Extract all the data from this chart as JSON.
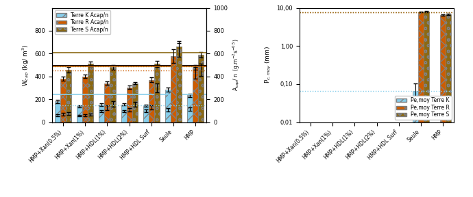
{
  "categories": [
    "HMP+Xan(0.5%)",
    "HMP+Xan(1%)",
    "HMP+HDL(1%)",
    "HMP+HDL(2%)",
    "HMP+HDL Surf",
    "Seule",
    "HMP"
  ],
  "wcap_K": [
    180,
    140,
    155,
    155,
    145,
    285,
    235
  ],
  "wcap_R": [
    380,
    400,
    340,
    305,
    370,
    520,
    480
  ],
  "wcap_S": [
    460,
    510,
    480,
    340,
    510,
    660,
    590
  ],
  "wcap_err_K": [
    15,
    10,
    12,
    10,
    10,
    20,
    15
  ],
  "wcap_err_R": [
    20,
    15,
    15,
    15,
    20,
    25,
    20
  ],
  "wcap_err_S": [
    25,
    20,
    20,
    10,
    25,
    30,
    25
  ],
  "wcap_ref_K": 245,
  "wcap_ref_R": 490,
  "wcap_ref_S": 610,
  "acap_K": [
    60,
    55,
    95,
    95,
    100,
    110,
    115
  ],
  "acap_R": [
    70,
    60,
    125,
    110,
    130,
    580,
    430
  ],
  "acap_S": [
    75,
    65,
    160,
    155,
    300,
    640,
    460
  ],
  "acap_err_K": [
    8,
    6,
    10,
    10,
    10,
    15,
    15
  ],
  "acap_err_R": [
    10,
    8,
    20,
    15,
    20,
    60,
    50
  ],
  "acap_err_S": [
    10,
    8,
    25,
    20,
    40,
    70,
    55
  ],
  "acap_ref_K": 145,
  "acap_ref_R": 450,
  "acap_ref_S": 490,
  "pce_K": [
    null,
    null,
    null,
    null,
    null,
    0.065,
    null
  ],
  "pce_R": [
    null,
    null,
    null,
    null,
    null,
    7.8,
    6.5
  ],
  "pce_S": [
    null,
    null,
    null,
    null,
    null,
    8.0,
    6.8
  ],
  "pce_err_K": [
    0,
    0,
    0,
    0,
    0,
    0.04,
    0
  ],
  "pce_err_R": [
    0,
    0,
    0,
    0,
    0,
    0.3,
    0.2
  ],
  "pce_err_S": [
    0,
    0,
    0,
    0,
    0,
    0.3,
    0.2
  ],
  "pce_ref_K": 0.065,
  "pce_ref_R": 7.5,
  "pce_ref_S": 7.5,
  "color_K": "#87CEEB",
  "color_R": "#CD5C00",
  "color_S": "#8B6914",
  "hatch_K": "//",
  "hatch_R": "xx",
  "hatch_S": "oo",
  "left_ylabel": "W$_{cap}$ (kg/ m$^3$)",
  "right_ylabel": "A$_{cap}$/ n  (g.m$^{-2}$s$^{-0.5}$)",
  "right_ylabel2": "P$_{c,moy}$ (mm)"
}
